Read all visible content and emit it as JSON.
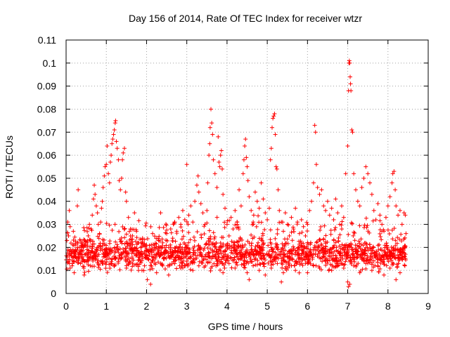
{
  "chart_data": {
    "type": "scatter",
    "title": "Day 156 of 2014, Rate Of TEC Index for receiver wtzr",
    "xlabel": "GPS time / hours",
    "ylabel": "ROTI / TECUs",
    "xlim": [
      0,
      9
    ],
    "ylim": [
      0,
      0.11
    ],
    "xticks": [
      "0",
      "1",
      "2",
      "3",
      "4",
      "5",
      "6",
      "7",
      "8",
      "9"
    ],
    "yticks": [
      "0",
      "0.01",
      "0.02",
      "0.03",
      "0.04",
      "0.05",
      "0.06",
      "0.07",
      "0.08",
      "0.09",
      "0.1",
      "0.11"
    ],
    "xtick_values": [
      0,
      1,
      2,
      3,
      4,
      5,
      6,
      7,
      8,
      9
    ],
    "ytick_values": [
      0,
      0.01,
      0.02,
      0.03,
      0.04,
      0.05,
      0.06,
      0.07,
      0.08,
      0.09,
      0.1,
      0.11
    ],
    "marker": "+",
    "color": "#ff0000",
    "grid": true,
    "legend": "none",
    "series": [
      {
        "name": "ROTI",
        "points": [
          [
            0.02,
            0.023
          ],
          [
            0.04,
            0.031
          ],
          [
            0.06,
            0.025
          ],
          [
            0.08,
            0.036
          ],
          [
            0.1,
            0.029
          ],
          [
            0.12,
            0.018
          ],
          [
            0.15,
            0.012
          ],
          [
            0.18,
            0.027
          ],
          [
            0.22,
            0.016
          ],
          [
            0.25,
            0.014
          ],
          [
            0.28,
            0.038
          ],
          [
            0.3,
            0.045
          ],
          [
            0.33,
            0.02
          ],
          [
            0.36,
            0.013
          ],
          [
            0.4,
            0.022
          ],
          [
            0.44,
            0.011
          ],
          [
            0.48,
            0.017
          ],
          [
            0.52,
            0.021
          ],
          [
            0.55,
            0.025
          ],
          [
            0.58,
            0.03
          ],
          [
            0.62,
            0.028
          ],
          [
            0.65,
            0.034
          ],
          [
            0.68,
            0.041
          ],
          [
            0.7,
            0.047
          ],
          [
            0.72,
            0.043
          ],
          [
            0.75,
            0.038
          ],
          [
            0.78,
            0.035
          ],
          [
            0.8,
            0.03
          ],
          [
            0.83,
            0.026
          ],
          [
            0.86,
            0.031
          ],
          [
            0.88,
            0.037
          ],
          [
            0.9,
            0.04
          ],
          [
            0.92,
            0.046
          ],
          [
            0.95,
            0.051
          ],
          [
            0.97,
            0.055
          ],
          [
            1.0,
            0.056
          ],
          [
            1.02,
            0.064
          ],
          [
            1.05,
            0.052
          ],
          [
            1.08,
            0.048
          ],
          [
            1.1,
            0.057
          ],
          [
            1.12,
            0.06
          ],
          [
            1.14,
            0.065
          ],
          [
            1.16,
            0.067
          ],
          [
            1.18,
            0.069
          ],
          [
            1.2,
            0.071
          ],
          [
            1.22,
            0.074
          ],
          [
            1.23,
            0.075
          ],
          [
            1.25,
            0.066
          ],
          [
            1.27,
            0.063
          ],
          [
            1.3,
            0.058
          ],
          [
            1.32,
            0.049
          ],
          [
            1.35,
            0.045
          ],
          [
            1.38,
            0.05
          ],
          [
            1.4,
            0.058
          ],
          [
            1.42,
            0.061
          ],
          [
            1.45,
            0.063
          ],
          [
            1.48,
            0.044
          ],
          [
            1.5,
            0.04
          ],
          [
            1.55,
            0.033
          ],
          [
            1.6,
            0.028
          ],
          [
            1.65,
            0.025
          ],
          [
            1.7,
            0.035
          ],
          [
            1.75,
            0.027
          ],
          [
            1.8,
            0.022
          ],
          [
            1.85,
            0.02
          ],
          [
            1.9,
            0.024
          ],
          [
            1.95,
            0.018
          ],
          [
            2.0,
            0.021
          ],
          [
            2.05,
            0.015
          ],
          [
            2.1,
            0.019
          ],
          [
            2.15,
            0.026
          ],
          [
            2.2,
            0.02
          ],
          [
            2.25,
            0.017
          ],
          [
            2.3,
            0.023
          ],
          [
            2.35,
            0.035
          ],
          [
            2.4,
            0.022
          ],
          [
            2.45,
            0.018
          ],
          [
            2.5,
            0.026
          ],
          [
            2.55,
            0.02
          ],
          [
            2.6,
            0.028
          ],
          [
            2.65,
            0.024
          ],
          [
            2.7,
            0.031
          ],
          [
            2.75,
            0.027
          ],
          [
            2.8,
            0.033
          ],
          [
            2.85,
            0.03
          ],
          [
            2.9,
            0.036
          ],
          [
            2.95,
            0.032
          ],
          [
            3.0,
            0.056
          ],
          [
            3.05,
            0.034
          ],
          [
            3.1,
            0.038
          ],
          [
            3.15,
            0.031
          ],
          [
            3.2,
            0.04
          ],
          [
            3.25,
            0.047
          ],
          [
            3.28,
            0.051
          ],
          [
            3.3,
            0.044
          ],
          [
            3.35,
            0.039
          ],
          [
            3.4,
            0.035
          ],
          [
            3.45,
            0.03
          ],
          [
            3.5,
            0.036
          ],
          [
            3.52,
            0.048
          ],
          [
            3.55,
            0.06
          ],
          [
            3.57,
            0.065
          ],
          [
            3.58,
            0.072
          ],
          [
            3.6,
            0.08
          ],
          [
            3.62,
            0.074
          ],
          [
            3.64,
            0.069
          ],
          [
            3.66,
            0.058
          ],
          [
            3.7,
            0.052
          ],
          [
            3.75,
            0.046
          ],
          [
            3.78,
            0.068
          ],
          [
            3.8,
            0.057
          ],
          [
            3.82,
            0.055
          ],
          [
            3.84,
            0.06
          ],
          [
            3.86,
            0.062
          ],
          [
            3.88,
            0.054
          ],
          [
            3.9,
            0.043
          ],
          [
            3.95,
            0.037
          ],
          [
            4.0,
            0.03
          ],
          [
            4.05,
            0.025
          ],
          [
            4.1,
            0.033
          ],
          [
            4.15,
            0.028
          ],
          [
            4.2,
            0.036
          ],
          [
            4.25,
            0.031
          ],
          [
            4.3,
            0.045
          ],
          [
            4.35,
            0.038
          ],
          [
            4.4,
            0.052
          ],
          [
            4.42,
            0.058
          ],
          [
            4.44,
            0.064
          ],
          [
            4.46,
            0.067
          ],
          [
            4.48,
            0.059
          ],
          [
            4.5,
            0.055
          ],
          [
            4.52,
            0.049
          ],
          [
            4.55,
            0.042
          ],
          [
            4.6,
            0.036
          ],
          [
            4.65,
            0.031
          ],
          [
            4.7,
            0.044
          ],
          [
            4.75,
            0.04
          ],
          [
            4.8,
            0.037
          ],
          [
            4.85,
            0.048
          ],
          [
            4.9,
            0.041
          ],
          [
            4.95,
            0.035
          ],
          [
            5.0,
            0.032
          ],
          [
            5.05,
            0.037
          ],
          [
            5.08,
            0.058
          ],
          [
            5.1,
            0.063
          ],
          [
            5.12,
            0.072
          ],
          [
            5.14,
            0.076
          ],
          [
            5.16,
            0.077
          ],
          [
            5.18,
            0.078
          ],
          [
            5.2,
            0.069
          ],
          [
            5.22,
            0.055
          ],
          [
            5.24,
            0.054
          ],
          [
            5.27,
            0.045
          ],
          [
            5.3,
            0.036
          ],
          [
            5.35,
            0.031
          ],
          [
            5.4,
            0.027
          ],
          [
            5.45,
            0.035
          ],
          [
            5.5,
            0.03
          ],
          [
            5.55,
            0.025
          ],
          [
            5.6,
            0.033
          ],
          [
            5.65,
            0.028
          ],
          [
            5.7,
            0.037
          ],
          [
            5.75,
            0.031
          ],
          [
            5.8,
            0.026
          ],
          [
            5.85,
            0.032
          ],
          [
            5.9,
            0.029
          ],
          [
            5.95,
            0.025
          ],
          [
            6.0,
            0.03
          ],
          [
            6.05,
            0.036
          ],
          [
            6.1,
            0.04
          ],
          [
            6.15,
            0.048
          ],
          [
            6.18,
            0.073
          ],
          [
            6.2,
            0.07
          ],
          [
            6.22,
            0.056
          ],
          [
            6.25,
            0.046
          ],
          [
            6.3,
            0.043
          ],
          [
            6.35,
            0.045
          ],
          [
            6.4,
            0.038
          ],
          [
            6.45,
            0.036
          ],
          [
            6.5,
            0.04
          ],
          [
            6.55,
            0.034
          ],
          [
            6.6,
            0.037
          ],
          [
            6.65,
            0.032
          ],
          [
            6.7,
            0.041
          ],
          [
            6.75,
            0.035
          ],
          [
            6.8,
            0.03
          ],
          [
            6.85,
            0.038
          ],
          [
            6.9,
            0.033
          ],
          [
            6.95,
            0.052
          ],
          [
            7.0,
            0.064
          ],
          [
            7.02,
            0.088
          ],
          [
            7.03,
            0.1
          ],
          [
            7.04,
            0.101
          ],
          [
            7.05,
            0.1
          ],
          [
            7.06,
            0.094
          ],
          [
            7.07,
            0.091
          ],
          [
            7.08,
            0.088
          ],
          [
            7.1,
            0.071
          ],
          [
            7.12,
            0.07
          ],
          [
            7.15,
            0.052
          ],
          [
            7.2,
            0.045
          ],
          [
            7.25,
            0.04
          ],
          [
            7.3,
            0.038
          ],
          [
            7.35,
            0.046
          ],
          [
            7.4,
            0.05
          ],
          [
            7.45,
            0.055
          ],
          [
            7.5,
            0.052
          ],
          [
            7.55,
            0.048
          ],
          [
            7.6,
            0.043
          ],
          [
            7.65,
            0.036
          ],
          [
            7.7,
            0.032
          ],
          [
            7.75,
            0.039
          ],
          [
            7.8,
            0.034
          ],
          [
            7.85,
            0.03
          ],
          [
            7.9,
            0.027
          ],
          [
            7.95,
            0.033
          ],
          [
            8.0,
            0.038
          ],
          [
            8.05,
            0.042
          ],
          [
            8.1,
            0.048
          ],
          [
            8.12,
            0.052
          ],
          [
            8.15,
            0.053
          ],
          [
            8.18,
            0.045
          ],
          [
            8.2,
            0.038
          ],
          [
            8.25,
            0.034
          ],
          [
            8.3,
            0.036
          ],
          [
            8.35,
            0.03
          ],
          [
            8.4,
            0.035
          ],
          [
            8.43,
            0.034
          ],
          [
            0.05,
            0.014
          ],
          [
            0.1,
            0.011
          ],
          [
            0.2,
            0.009
          ],
          [
            0.3,
            0.015
          ],
          [
            0.45,
            0.008
          ],
          [
            0.6,
            0.012
          ],
          [
            0.75,
            0.016
          ],
          [
            0.9,
            0.013
          ],
          [
            1.05,
            0.017
          ],
          [
            1.2,
            0.012
          ],
          [
            1.35,
            0.015
          ],
          [
            1.5,
            0.011
          ],
          [
            1.65,
            0.013
          ],
          [
            1.8,
            0.01
          ],
          [
            1.95,
            0.012
          ],
          [
            2.02,
            0.006
          ],
          [
            2.1,
            0.004
          ],
          [
            2.25,
            0.009
          ],
          [
            2.4,
            0.012
          ],
          [
            2.55,
            0.008
          ],
          [
            2.7,
            0.013
          ],
          [
            2.85,
            0.011
          ],
          [
            3.0,
            0.014
          ],
          [
            3.15,
            0.01
          ],
          [
            3.3,
            0.012
          ],
          [
            3.45,
            0.016
          ],
          [
            3.6,
            0.011
          ],
          [
            3.75,
            0.014
          ],
          [
            3.9,
            0.009
          ],
          [
            4.05,
            0.013
          ],
          [
            4.2,
            0.011
          ],
          [
            4.35,
            0.015
          ],
          [
            4.5,
            0.009
          ],
          [
            4.55,
            0.006
          ],
          [
            4.65,
            0.012
          ],
          [
            4.8,
            0.01
          ],
          [
            4.95,
            0.008
          ],
          [
            5.1,
            0.011
          ],
          [
            5.25,
            0.013
          ],
          [
            5.35,
            0.005
          ],
          [
            5.4,
            0.009
          ],
          [
            5.55,
            0.012
          ],
          [
            5.7,
            0.01
          ],
          [
            5.85,
            0.013
          ],
          [
            6.0,
            0.009
          ],
          [
            6.15,
            0.012
          ],
          [
            6.3,
            0.011
          ],
          [
            6.45,
            0.014
          ],
          [
            6.6,
            0.01
          ],
          [
            6.75,
            0.013
          ],
          [
            6.9,
            0.011
          ],
          [
            7.0,
            0.005
          ],
          [
            7.02,
            0.003
          ],
          [
            7.05,
            0.004
          ],
          [
            7.15,
            0.012
          ],
          [
            7.3,
            0.009
          ],
          [
            7.45,
            0.013
          ],
          [
            7.6,
            0.01
          ],
          [
            7.75,
            0.012
          ],
          [
            7.9,
            0.008
          ],
          [
            8.05,
            0.011
          ],
          [
            8.2,
            0.006
          ],
          [
            8.3,
            0.009
          ],
          [
            8.42,
            0.012
          ]
        ]
      }
    ]
  }
}
